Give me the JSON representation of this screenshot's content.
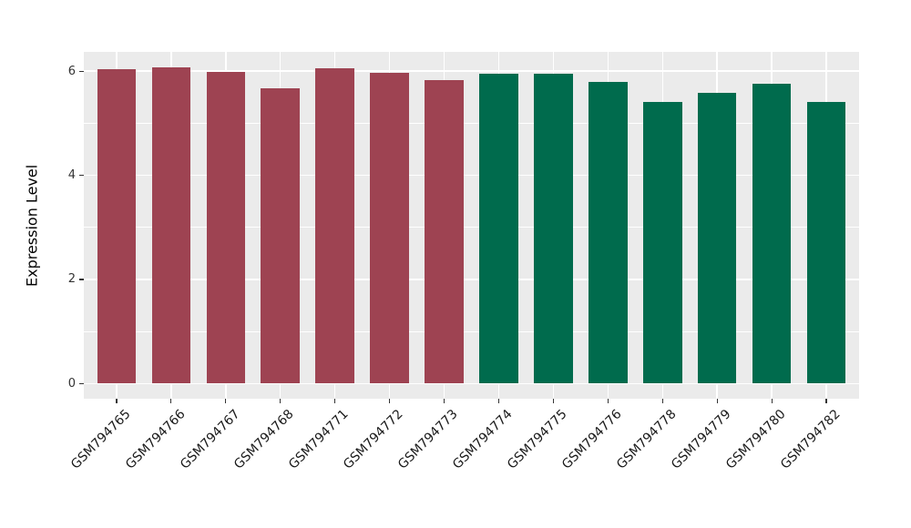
{
  "chart_data": {
    "type": "bar",
    "title": "",
    "xlabel": "",
    "ylabel": "Expression Level",
    "categories": [
      "GSM794765",
      "GSM794766",
      "GSM794767",
      "GSM794768",
      "GSM794771",
      "GSM794772",
      "GSM794773",
      "GSM794774",
      "GSM794775",
      "GSM794776",
      "GSM794778",
      "GSM794779",
      "GSM794780",
      "GSM794782"
    ],
    "values": [
      6.04,
      6.08,
      5.99,
      5.67,
      6.05,
      5.97,
      5.82,
      5.95,
      5.95,
      5.79,
      5.4,
      5.59,
      5.75,
      5.4
    ],
    "bar_colors": [
      "#9E4352",
      "#9E4352",
      "#9E4352",
      "#9E4352",
      "#9E4352",
      "#9E4352",
      "#9E4352",
      "#006B4D",
      "#006B4D",
      "#006B4D",
      "#006B4D",
      "#006B4D",
      "#006B4D",
      "#006B4D"
    ],
    "yticks": [
      0,
      2,
      4,
      6
    ],
    "yticks_minor": [
      1,
      3,
      5
    ],
    "ylim": [
      -0.29,
      6.37
    ],
    "grid": true,
    "legend": "none",
    "x_tick_rotation": 45,
    "colors": {
      "group_left": "#9E4352",
      "group_right": "#006B4D",
      "panel_background": "#EBEBEB",
      "gridline": "#FFFFFF",
      "tick": "#333333",
      "tick_label": "#333333",
      "axis_title": "#000000"
    }
  }
}
